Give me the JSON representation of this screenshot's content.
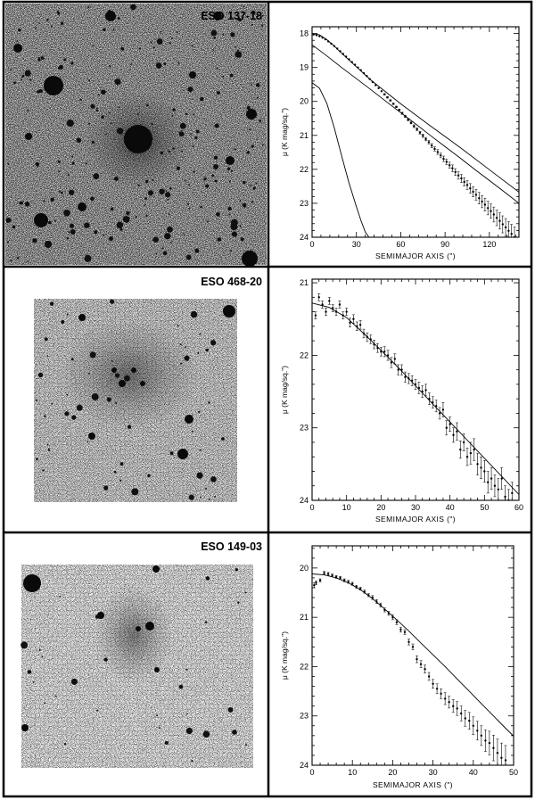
{
  "panels": [
    {
      "galaxy": "ESO 137-18",
      "chart_data": {
        "type": "scatter",
        "xlabel": "SEMIMAJOR AXIS (\")",
        "ylabel": "μ (K mag/sq.\")",
        "xlim": [
          0,
          140
        ],
        "ylim": [
          24,
          17.8
        ],
        "y_inverted": true,
        "xticks": [
          0,
          30,
          60,
          90,
          120
        ],
        "yticks": [
          18,
          19,
          20,
          21,
          22,
          23,
          24
        ],
        "series": [
          {
            "kind": "points",
            "x": [
              1,
              3,
              5,
              7,
              9,
              11,
              13,
              15,
              17,
              19,
              21,
              23,
              25,
              27,
              29,
              31,
              33,
              35,
              37,
              39,
              41,
              43,
              45,
              47,
              49,
              51,
              53,
              55,
              57,
              59,
              61,
              63,
              65,
              67,
              69,
              71,
              73,
              75,
              77,
              79,
              81,
              83,
              85,
              87,
              89,
              91,
              93,
              95,
              97,
              99,
              101,
              103,
              105,
              107,
              109,
              111,
              113,
              115,
              117,
              119,
              121,
              123,
              125,
              127,
              129,
              131,
              133,
              135,
              137
            ],
            "y": [
              18.03,
              18.05,
              18.08,
              18.12,
              18.17,
              18.23,
              18.3,
              18.37,
              18.44,
              18.52,
              18.6,
              18.68,
              18.76,
              18.84,
              18.92,
              19.0,
              19.08,
              19.17,
              19.25,
              19.34,
              19.43,
              19.52,
              19.61,
              19.7,
              19.79,
              19.88,
              19.97,
              20.07,
              20.16,
              20.25,
              20.35,
              20.44,
              20.54,
              20.63,
              20.73,
              20.82,
              20.92,
              21.01,
              21.11,
              21.2,
              21.3,
              21.4,
              21.49,
              21.59,
              21.69,
              21.78,
              21.88,
              21.97,
              22.08,
              22.18,
              22.27,
              22.37,
              22.46,
              22.56,
              22.66,
              22.75,
              22.85,
              22.95,
              23.04,
              23.14,
              23.23,
              23.33,
              23.43,
              23.52,
              23.62,
              23.71,
              23.81,
              23.9,
              24.0
            ],
            "err": [
              0.01,
              0.01,
              0.01,
              0.01,
              0.01,
              0.01,
              0.01,
              0.01,
              0.01,
              0.01,
              0.01,
              0.01,
              0.01,
              0.01,
              0.01,
              0.01,
              0.01,
              0.01,
              0.01,
              0.01,
              0.01,
              0.01,
              0.01,
              0.01,
              0.02,
              0.02,
              0.02,
              0.02,
              0.02,
              0.02,
              0.03,
              0.03,
              0.03,
              0.03,
              0.04,
              0.04,
              0.04,
              0.05,
              0.05,
              0.05,
              0.06,
              0.06,
              0.07,
              0.07,
              0.08,
              0.08,
              0.09,
              0.1,
              0.1,
              0.11,
              0.12,
              0.12,
              0.13,
              0.14,
              0.15,
              0.16,
              0.17,
              0.18,
              0.19,
              0.2,
              0.21,
              0.22,
              0.23,
              0.24,
              0.25,
              0.26,
              0.27,
              0.28,
              0.3
            ]
          },
          {
            "kind": "line",
            "x": [
              0,
              10,
              20,
              30,
              40,
              50,
              60,
              70,
              80,
              90,
              100,
              110,
              120,
              130,
              140
            ],
            "y": [
              18.33,
              18.66,
              19.0,
              19.33,
              19.66,
              20.0,
              20.33,
              20.66,
              21.0,
              21.33,
              21.66,
              22.0,
              22.33,
              22.66,
              23.0
            ]
          },
          {
            "kind": "line",
            "x": [
              0,
              5,
              10,
              15,
              20,
              25,
              30,
              33,
              36,
              38.5
            ],
            "y": [
              19.45,
              19.61,
              20.06,
              20.78,
              21.6,
              22.4,
              23.1,
              23.5,
              23.85,
              24.0
            ]
          },
          {
            "kind": "line",
            "x": [
              0,
              5,
              10,
              15,
              20,
              30,
              40,
              60,
              80,
              100,
              120,
              140
            ],
            "y": [
              18.0,
              18.04,
              18.18,
              18.37,
              18.58,
              18.98,
              19.38,
              20.07,
              20.72,
              21.35,
              22.01,
              22.67
            ]
          }
        ]
      }
    },
    {
      "galaxy": "ESO 468-20",
      "chart_data": {
        "type": "scatter",
        "xlabel": "SEMIMAJOR AXIS (\")",
        "ylabel": "μ (K mag/sq.\")",
        "xlim": [
          0,
          60
        ],
        "ylim": [
          24,
          20.95
        ],
        "y_inverted": true,
        "xticks": [
          0,
          10,
          20,
          30,
          40,
          50,
          60
        ],
        "yticks": [
          21,
          22,
          23,
          24
        ],
        "series": [
          {
            "kind": "points",
            "x": [
              1,
              2,
              3,
              4,
              5,
              6,
              7,
              8,
              9,
              10,
              11,
              12,
              13,
              14,
              15,
              16,
              17,
              18,
              19,
              20,
              21,
              22,
              23,
              24,
              25,
              26,
              27,
              28,
              29,
              30,
              31,
              32,
              33,
              34,
              35,
              36,
              37,
              38,
              39,
              40,
              41,
              42,
              43,
              44,
              45,
              46,
              47,
              48,
              49,
              50,
              51,
              52,
              53,
              54,
              55,
              56,
              57,
              58
            ],
            "y": [
              21.45,
              21.2,
              21.3,
              21.4,
              21.25,
              21.35,
              21.4,
              21.3,
              21.45,
              21.4,
              21.55,
              21.5,
              21.6,
              21.58,
              21.7,
              21.75,
              21.78,
              21.85,
              21.9,
              21.95,
              21.95,
              22.0,
              22.1,
              22.05,
              22.2,
              22.2,
              22.3,
              22.32,
              22.35,
              22.4,
              22.45,
              22.5,
              22.48,
              22.6,
              22.65,
              22.7,
              22.8,
              22.75,
              23.0,
              22.95,
              23.1,
              23.05,
              23.3,
              23.2,
              23.4,
              23.35,
              23.3,
              23.5,
              23.55,
              23.6,
              23.75,
              23.7,
              23.8,
              23.85,
              23.7,
              23.95,
              24.0,
              23.9
            ],
            "err": [
              0.05,
              0.05,
              0.05,
              0.05,
              0.05,
              0.05,
              0.05,
              0.05,
              0.05,
              0.05,
              0.06,
              0.06,
              0.06,
              0.06,
              0.06,
              0.06,
              0.06,
              0.06,
              0.06,
              0.06,
              0.07,
              0.07,
              0.07,
              0.07,
              0.07,
              0.07,
              0.07,
              0.07,
              0.07,
              0.07,
              0.08,
              0.08,
              0.08,
              0.08,
              0.08,
              0.08,
              0.08,
              0.1,
              0.1,
              0.1,
              0.1,
              0.12,
              0.12,
              0.12,
              0.12,
              0.15,
              0.15,
              0.15,
              0.15,
              0.15,
              0.15,
              0.15,
              0.15,
              0.15,
              0.15,
              0.15,
              0.15,
              0.15
            ]
          },
          {
            "kind": "line",
            "x": [
              0,
              5,
              10,
              15,
              20,
              25,
              30,
              35,
              40,
              45,
              50,
              55,
              60
            ],
            "y": [
              21.28,
              21.34,
              21.48,
              21.7,
              21.93,
              22.17,
              22.42,
              22.67,
              22.92,
              23.17,
              23.42,
              23.67,
              23.92
            ]
          }
        ]
      }
    },
    {
      "galaxy": "ESO 149-03",
      "chart_data": {
        "type": "scatter",
        "xlabel": "SEMIMAJOR AXIS (\")",
        "ylabel": "μ (K mag/sq.\")",
        "xlim": [
          0,
          50
        ],
        "ylim": [
          24,
          19.55
        ],
        "y_inverted": true,
        "xticks": [
          0,
          10,
          20,
          30,
          40,
          50
        ],
        "yticks": [
          20,
          21,
          22,
          23,
          24
        ],
        "series": [
          {
            "kind": "points",
            "x": [
              0.5,
              1,
              2,
              3,
              4,
              5,
              6,
              7,
              8,
              9,
              10,
              11,
              12,
              13,
              14,
              15,
              16,
              17,
              18,
              19,
              20,
              21,
              22,
              23,
              24,
              25,
              26,
              27,
              28,
              29,
              30,
              31,
              32,
              33,
              34,
              35,
              36,
              37,
              38,
              39,
              40,
              41,
              42,
              43,
              44,
              45,
              46,
              47,
              48
            ],
            "y": [
              20.35,
              20.3,
              20.25,
              20.1,
              20.12,
              20.15,
              20.18,
              20.2,
              20.25,
              20.28,
              20.32,
              20.38,
              20.42,
              20.48,
              20.55,
              20.6,
              20.68,
              20.75,
              20.85,
              20.92,
              21.0,
              21.1,
              21.25,
              21.3,
              21.5,
              21.6,
              21.85,
              21.95,
              22.05,
              22.2,
              22.35,
              22.45,
              22.55,
              22.65,
              22.72,
              22.8,
              22.85,
              22.95,
              23.05,
              23.1,
              23.2,
              23.3,
              23.4,
              23.5,
              23.55,
              23.65,
              23.75,
              23.85,
              23.9
            ],
            "err": [
              0.05,
              0.04,
              0.03,
              0.03,
              0.03,
              0.03,
              0.03,
              0.03,
              0.03,
              0.03,
              0.03,
              0.03,
              0.03,
              0.03,
              0.03,
              0.04,
              0.04,
              0.04,
              0.04,
              0.04,
              0.05,
              0.05,
              0.05,
              0.05,
              0.06,
              0.06,
              0.07,
              0.07,
              0.08,
              0.08,
              0.09,
              0.1,
              0.1,
              0.12,
              0.12,
              0.13,
              0.14,
              0.15,
              0.16,
              0.17,
              0.18,
              0.19,
              0.2,
              0.22,
              0.24,
              0.26,
              0.28,
              0.3,
              0.3
            ]
          },
          {
            "kind": "line",
            "x": [
              0,
              3,
              6,
              9,
              12,
              15,
              18,
              21,
              24,
              27,
              30,
              33,
              36,
              39,
              42,
              45,
              48,
              50
            ],
            "y": [
              20.12,
              20.14,
              20.2,
              20.3,
              20.44,
              20.62,
              20.83,
              21.05,
              21.28,
              21.52,
              21.76,
              22.0,
              22.25,
              22.5,
              22.75,
              23.0,
              23.25,
              23.41
            ]
          }
        ]
      }
    }
  ]
}
